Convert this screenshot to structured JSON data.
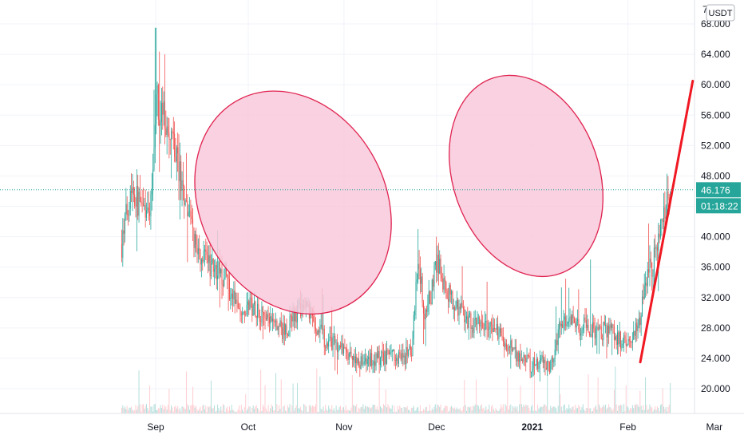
{
  "chart_data": {
    "type": "candlestick",
    "quote_currency": "USDT",
    "y_axis": {
      "ylim": [
        16.8,
        70.5
      ],
      "ticks": [
        20.0,
        24.0,
        28.0,
        32.0,
        36.0,
        40.0,
        44.0,
        48.0,
        52.0,
        56.0,
        60.0,
        64.0,
        68.0
      ],
      "tick_labels": [
        "20.000",
        "24.000",
        "28.000",
        "32.000",
        "36.000",
        "40.000",
        "44.000",
        "48.000",
        "52.000",
        "56.000",
        "60.000",
        "64.000",
        "68.000"
      ],
      "partial_top_label": "7"
    },
    "x_axis": {
      "labels": [
        {
          "text": "Sep",
          "date": "2020-09-01",
          "bold": false
        },
        {
          "text": "Oct",
          "date": "2020-10-01",
          "bold": false
        },
        {
          "text": "Nov",
          "date": "2020-11-01",
          "bold": false
        },
        {
          "text": "Dec",
          "date": "2020-12-01",
          "bold": false
        },
        {
          "text": "2021",
          "date": "2021-01-01",
          "bold": true
        },
        {
          "text": "Feb",
          "date": "2021-02-01",
          "bold": false
        },
        {
          "text": "Mar",
          "date": "2021-03-01",
          "bold": false
        }
      ]
    },
    "price_anchors": [
      [
        "2020-08-21",
        39.0
      ],
      [
        "2020-08-24",
        47.0
      ],
      [
        "2020-08-27",
        44.0
      ],
      [
        "2020-08-30",
        42.0
      ],
      [
        "2020-09-01",
        58.0
      ],
      [
        "2020-09-04",
        55.0
      ],
      [
        "2020-09-07",
        52.0
      ],
      [
        "2020-09-10",
        46.0
      ],
      [
        "2020-09-13",
        40.0
      ],
      [
        "2020-09-16",
        37.0
      ],
      [
        "2020-09-20",
        36.0
      ],
      [
        "2020-09-24",
        34.0
      ],
      [
        "2020-09-27",
        31.0
      ],
      [
        "2020-09-30",
        31.0
      ],
      [
        "2020-10-03",
        31.0
      ],
      [
        "2020-10-07",
        29.0
      ],
      [
        "2020-10-10",
        28.0
      ],
      [
        "2020-10-13",
        27.5
      ],
      [
        "2020-10-17",
        30.0
      ],
      [
        "2020-10-20",
        30.5
      ],
      [
        "2020-10-23",
        28.0
      ],
      [
        "2020-10-26",
        26.5
      ],
      [
        "2020-10-30",
        25.5
      ],
      [
        "2020-11-03",
        24.0
      ],
      [
        "2020-11-07",
        23.5
      ],
      [
        "2020-11-12",
        24.0
      ],
      [
        "2020-11-16",
        24.5
      ],
      [
        "2020-11-20",
        24.0
      ],
      [
        "2020-11-23",
        25.0
      ],
      [
        "2020-11-25",
        37.0
      ],
      [
        "2020-11-27",
        30.0
      ],
      [
        "2020-11-29",
        32.0
      ],
      [
        "2020-12-01",
        37.0
      ],
      [
        "2020-12-04",
        33.0
      ],
      [
        "2020-12-07",
        31.0
      ],
      [
        "2020-12-10",
        30.0
      ],
      [
        "2020-12-13",
        28.0
      ],
      [
        "2020-12-16",
        28.5
      ],
      [
        "2020-12-20",
        27.5
      ],
      [
        "2020-12-24",
        26.0
      ],
      [
        "2020-12-28",
        24.0
      ],
      [
        "2021-01-01",
        23.0
      ],
      [
        "2021-01-04",
        24.0
      ],
      [
        "2021-01-07",
        23.0
      ],
      [
        "2021-01-10",
        28.0
      ],
      [
        "2021-01-13",
        29.0
      ],
      [
        "2021-01-16",
        28.0
      ],
      [
        "2021-01-19",
        28.5
      ],
      [
        "2021-01-22",
        27.0
      ],
      [
        "2021-01-25",
        28.0
      ],
      [
        "2021-01-28",
        27.0
      ],
      [
        "2021-01-31",
        26.0
      ],
      [
        "2021-02-03",
        27.0
      ],
      [
        "2021-02-05",
        29.0
      ],
      [
        "2021-02-07",
        35.0
      ],
      [
        "2021-02-09",
        36.0
      ],
      [
        "2021-02-11",
        40.0
      ],
      [
        "2021-02-13",
        44.0
      ],
      [
        "2021-02-15",
        46.0
      ]
    ],
    "spikes": [
      [
        "2020-09-01",
        67.5
      ],
      [
        "2020-09-04",
        64.0
      ],
      [
        "2020-11-25",
        41.0
      ],
      [
        "2020-12-01",
        40.0
      ],
      [
        "2021-01-20",
        37.0
      ],
      [
        "2021-02-14",
        48.0
      ]
    ],
    "last_price": "46.176",
    "countdown": "01:18:22",
    "colors": {
      "up": "#26a69a",
      "down": "#ef5350",
      "ellipse_fill": "#f8c9da",
      "ellipse_stroke": "#e0224f",
      "trend_line": "#f01822",
      "price_line": "#26a69a",
      "grid": "#f0f3fa",
      "volume": "#d1d4dc"
    },
    "drawings": [
      {
        "type": "ellipse",
        "from": "2020-09-05",
        "to": "2020-11-25",
        "y_range": [
          22.0,
          67.0
        ],
        "rotation_deg": -28
      },
      {
        "type": "ellipse",
        "from": "2020-11-28",
        "to": "2021-01-31",
        "y_range": [
          28.0,
          68.0
        ],
        "rotation_deg": -19
      },
      {
        "type": "trend_line",
        "from": [
          "2021-02-05",
          23.5
        ],
        "to": [
          "2021-02-22",
          60.5
        ]
      }
    ],
    "grid": true,
    "legend": "none"
  }
}
